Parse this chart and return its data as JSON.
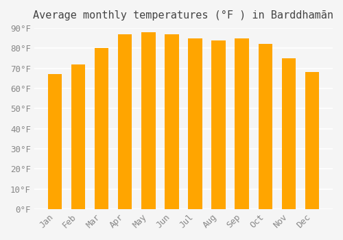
{
  "title": "Average monthly temperatures (°F ) in Barddhamān",
  "months": [
    "Jan",
    "Feb",
    "Mar",
    "Apr",
    "May",
    "Jun",
    "Jul",
    "Aug",
    "Sep",
    "Oct",
    "Nov",
    "Dec"
  ],
  "values": [
    67,
    72,
    80,
    87,
    88,
    87,
    85,
    84,
    85,
    82,
    75,
    68
  ],
  "bar_color_top": "#FFA500",
  "bar_color_bottom": "#FFD700",
  "ylim": [
    0,
    90
  ],
  "yticks": [
    0,
    10,
    20,
    30,
    40,
    50,
    60,
    70,
    80,
    90
  ],
  "ytick_labels": [
    "0°F",
    "10°F",
    "20°F",
    "30°F",
    "40°F",
    "50°F",
    "60°F",
    "70°F",
    "80°F",
    "90°F"
  ],
  "background_color": "#f5f5f5",
  "grid_color": "#ffffff",
  "bar_edge_color": "none",
  "title_fontsize": 11,
  "tick_fontsize": 9
}
